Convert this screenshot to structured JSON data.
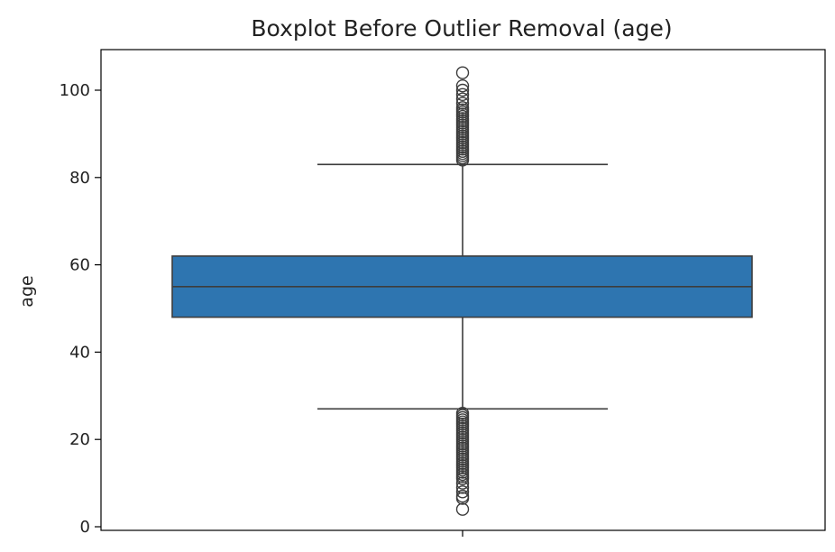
{
  "chart_data": {
    "type": "boxplot",
    "title": "Boxplot Before Outlier Removal (age)",
    "xlabel": "",
    "ylabel": "age",
    "ylim": [
      0,
      108
    ],
    "yticks": [
      0,
      20,
      40,
      60,
      80,
      100
    ],
    "grid": false,
    "box": {
      "whisker_low": 27,
      "q1": 48,
      "median": 55,
      "q3": 62,
      "whisker_high": 83,
      "color": "#2e75b0"
    },
    "outliers_high": [
      84,
      84.5,
      85,
      85.5,
      86,
      86.5,
      87,
      87.5,
      88,
      88.5,
      89,
      89.5,
      90,
      90.5,
      91,
      91.5,
      92,
      92.5,
      93,
      93.5,
      94,
      94.5,
      95,
      95.5,
      96,
      97,
      98,
      99,
      100,
      101,
      104
    ],
    "outliers_low": [
      4,
      6.5,
      7,
      8,
      9,
      10,
      11,
      11.5,
      12,
      12.5,
      13,
      13.5,
      14,
      14.5,
      15,
      15.5,
      16,
      16.5,
      17,
      17.5,
      18,
      18.5,
      19,
      19.5,
      20,
      20.5,
      21,
      21.5,
      22,
      22.5,
      23,
      23.5,
      24,
      24.5,
      25,
      25.5,
      26
    ]
  }
}
